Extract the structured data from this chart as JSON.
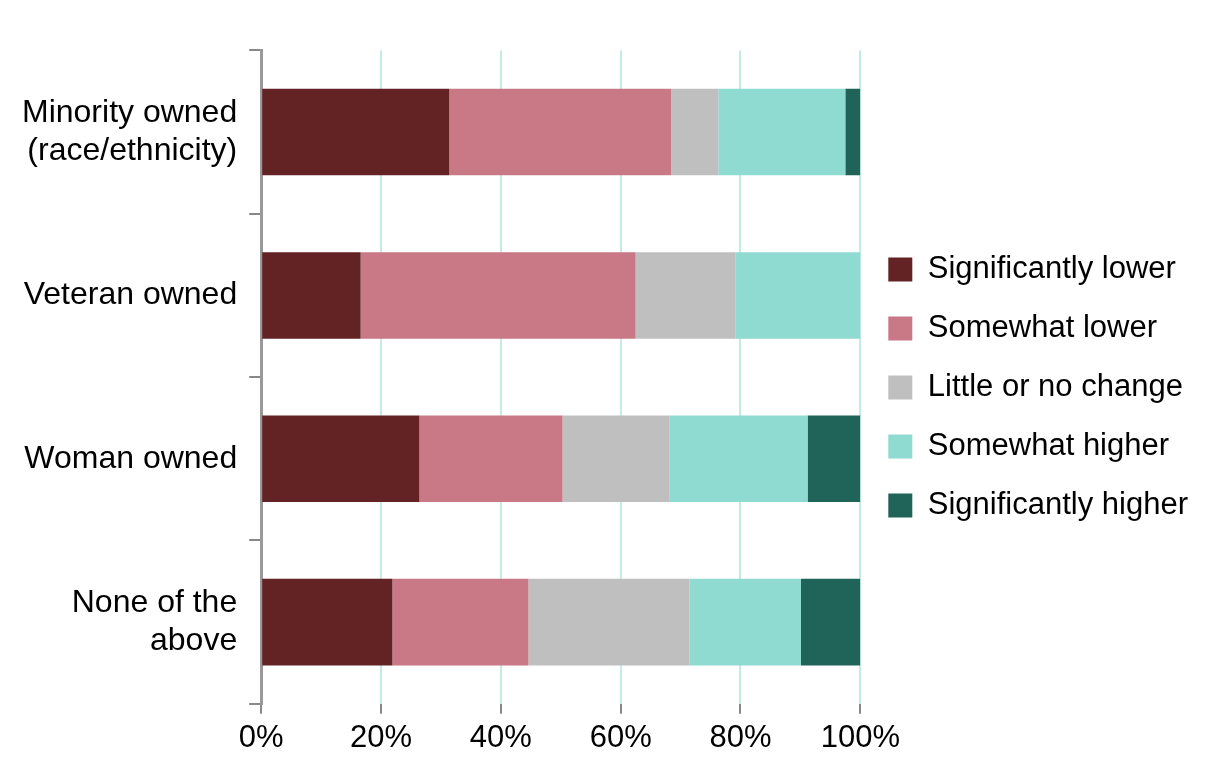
{
  "chart_data": {
    "type": "bar",
    "orientation": "horizontal",
    "stacked": true,
    "categories": [
      "Minority owned (race/ethnicity)",
      "Veteran owned",
      "Woman owned",
      "None of the above"
    ],
    "series": [
      {
        "name": "Significantly lower",
        "color": "#632324",
        "values": [
          31.4,
          16.6,
          26.4,
          21.9
        ]
      },
      {
        "name": "Somewhat lower",
        "color": "#c97885",
        "values": [
          37.0,
          45.9,
          23.9,
          22.7
        ]
      },
      {
        "name": "Little or no change",
        "color": "#bfbfbf",
        "values": [
          7.9,
          16.7,
          17.8,
          26.9
        ]
      },
      {
        "name": "Somewhat higher",
        "color": "#8fdad1",
        "values": [
          21.2,
          20.8,
          23.1,
          18.6
        ]
      },
      {
        "name": "Significantly higher",
        "color": "#1f6359",
        "values": [
          2.5,
          0,
          8.8,
          9.9
        ]
      }
    ],
    "xlim": [
      0,
      100
    ],
    "xticks": [
      {
        "value": 0,
        "label": "0%"
      },
      {
        "value": 20,
        "label": "20%"
      },
      {
        "value": 40,
        "label": "40%"
      },
      {
        "value": 60,
        "label": "60%"
      },
      {
        "value": 80,
        "label": "80%"
      },
      {
        "value": 100,
        "label": "100%"
      }
    ],
    "grid": "x",
    "legend": "right"
  }
}
